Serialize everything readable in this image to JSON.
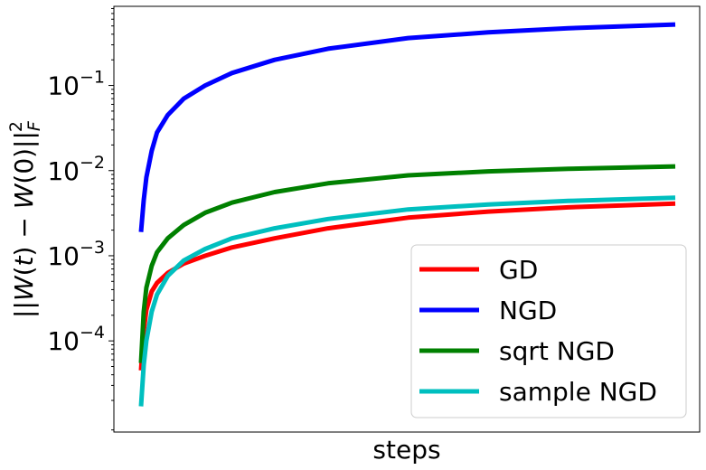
{
  "chart_data": {
    "type": "line",
    "xlabel": "steps",
    "ylabel": "||W(t) − W(0)||_F^2",
    "yscale": "log",
    "ylim": [
      8.5e-06,
      0.85
    ],
    "x_ticks_shown": false,
    "grid": false,
    "legend_position": "lower-right",
    "yticks": [
      {
        "value": 0.0001,
        "base": "10",
        "exp": "−4"
      },
      {
        "value": 0.001,
        "base": "10",
        "exp": "−3"
      },
      {
        "value": 0.01,
        "base": "10",
        "exp": "−2"
      },
      {
        "value": 0.1,
        "base": "10",
        "exp": "−1"
      }
    ],
    "x": [
      0,
      0.005,
      0.01,
      0.02,
      0.03,
      0.05,
      0.08,
      0.12,
      0.17,
      0.25,
      0.35,
      0.5,
      0.65,
      0.8,
      1.0
    ],
    "series": [
      {
        "name": "GD",
        "color": "#ff0000",
        "values": [
          4.5e-05,
          0.00013,
          0.00023,
          0.00038,
          0.00048,
          0.00063,
          0.00081,
          0.001,
          0.00125,
          0.0016,
          0.0021,
          0.0028,
          0.0033,
          0.0037,
          0.0041
        ]
      },
      {
        "name": "NGD",
        "color": "#0000ff",
        "values": [
          0.0019,
          0.0045,
          0.0083,
          0.017,
          0.028,
          0.045,
          0.07,
          0.1,
          0.14,
          0.2,
          0.27,
          0.36,
          0.42,
          0.47,
          0.52
        ]
      },
      {
        "name": "sqrt NGD",
        "color": "#008000",
        "values": [
          5.5e-05,
          0.00022,
          0.00042,
          0.00076,
          0.0011,
          0.0016,
          0.0023,
          0.0032,
          0.0042,
          0.0056,
          0.0071,
          0.0088,
          0.0098,
          0.0105,
          0.0112
        ]
      },
      {
        "name": "sample NGD",
        "color": "#00bfbf",
        "values": [
          1.7e-05,
          5.2e-05,
          0.0001,
          0.00022,
          0.00035,
          0.00058,
          0.00088,
          0.0012,
          0.0016,
          0.0021,
          0.0027,
          0.0035,
          0.004,
          0.0044,
          0.0048
        ]
      }
    ]
  }
}
